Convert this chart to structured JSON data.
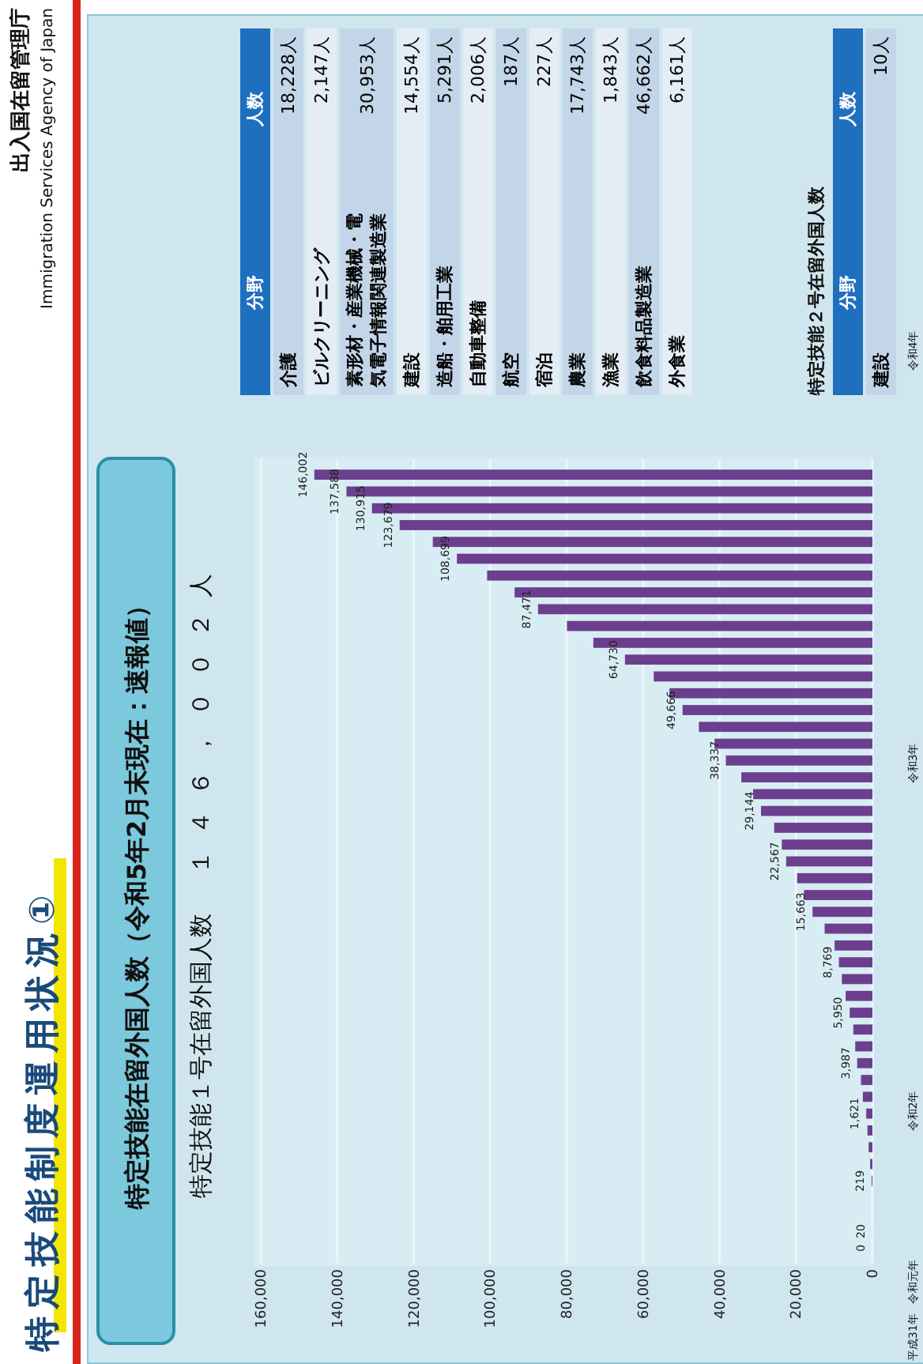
{
  "chart_data": [
    {
      "type": "bar",
      "orientation": "horizontal",
      "title": "特定技能制度運用状況①",
      "subtitle": "特定技能在留外国人数（令和5年2月末現在：速報値）",
      "annotations": [
        "出入国在留管理庁",
        "Immigration Services Agency of Japan",
        "特定技能１号在留外国人数",
        "１４６，００２人",
        "平成31年",
        "令和元年",
        "令和2年",
        "令和3年",
        "令和4年"
      ],
      "categories": [
        null,
        null,
        null,
        null,
        null,
        null,
        null,
        null,
        null,
        null,
        null,
        null,
        null,
        null,
        null,
        null,
        null,
        null,
        null,
        null,
        null,
        null,
        null,
        null,
        null,
        null,
        null,
        null,
        null,
        null,
        null,
        null,
        null,
        null,
        null,
        null,
        null,
        null,
        null,
        null,
        null,
        null,
        null,
        null,
        null,
        null,
        null
      ],
      "values": [
        146002,
        137588,
        130915,
        123679,
        115000,
        108699,
        100800,
        93600,
        87471,
        79900,
        73000,
        64730,
        57200,
        53100,
        49666,
        45400,
        41300,
        38337,
        34300,
        31200,
        29144,
        25700,
        23700,
        22567,
        19700,
        17900,
        15663,
        12500,
        9900,
        8769,
        8000,
        7000,
        5950,
        5000,
        4500,
        3987,
        3000,
        2500,
        1621,
        1300,
        1000,
        600,
        219,
        null,
        null,
        20,
        0
      ],
      "value_labels": [
        "146,002",
        "137,588",
        "130,915",
        "123,679",
        null,
        "108,699",
        null,
        null,
        "87,471",
        null,
        null,
        "64,730",
        null,
        null,
        "49,666",
        null,
        null,
        "38,337",
        null,
        null,
        "29,144",
        null,
        null,
        "22,567",
        null,
        null,
        "15,663",
        null,
        null,
        "8,769",
        null,
        null,
        "5,950",
        null,
        null,
        "3,987",
        null,
        null,
        "1,621",
        null,
        null,
        null,
        "219",
        null,
        null,
        "20",
        "0"
      ],
      "color": "#6b3f8e",
      "xlim": [
        160000,
        0
      ],
      "xticks": [
        {
          "value": 0,
          "label": "0"
        },
        {
          "value": 20000,
          "label": "20,000"
        },
        {
          "value": 40000,
          "label": "40,000"
        },
        {
          "value": 60000,
          "label": "60,000"
        },
        {
          "value": 80000,
          "label": "80,000"
        },
        {
          "value": 100000,
          "label": "100,000"
        },
        {
          "value": 120000,
          "label": "120,000"
        },
        {
          "value": 140000,
          "label": "140,000"
        },
        {
          "value": 160000,
          "label": "160,000"
        }
      ],
      "grid": "x"
    },
    {
      "type": "other",
      "xlabel": "分野",
      "ylabel": "人数",
      "categories": [
        "介護",
        "ビルクリーニング",
        "素形材・産業機械・電気電子情報関連製造業",
        "建設",
        "造船・舶用工業",
        "自動車整備",
        "航空",
        "宿泊",
        "農業",
        "漁業",
        "飲食料品製造業",
        "外食業"
      ],
      "values": [
        18228,
        2147,
        30953,
        14554,
        5291,
        2006,
        187,
        227,
        17743,
        1843,
        46662,
        6161
      ],
      "value_labels": [
        "18,228人",
        "2,147人",
        "30,953人",
        "14,554人",
        "5,291人",
        "2,006人",
        "187人",
        "227人",
        "17,743人",
        "1,843人",
        "46,662人",
        "6,161人"
      ]
    },
    {
      "type": "other",
      "title": "特定技能２号在留外国人数",
      "xlabel": "分野",
      "ylabel": "人数",
      "categories": [
        "建設"
      ],
      "values": [
        10
      ],
      "value_labels": [
        "10人"
      ]
    }
  ]
}
